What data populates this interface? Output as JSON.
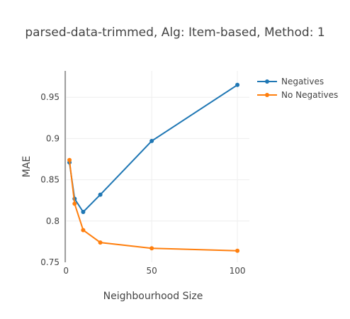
{
  "chart_data": {
    "type": "line",
    "title": "parsed-data-trimmed, Alg: Item-based, Method: 1",
    "xlabel": "Neighbourhood Size",
    "ylabel": "MAE",
    "xlim": [
      -0.5,
      107
    ],
    "ylim": [
      0.75,
      0.982
    ],
    "xticks": [
      0,
      50,
      100
    ],
    "xtick_labels": [
      "0",
      "50",
      "100"
    ],
    "yticks": [
      0.75,
      0.8,
      0.85,
      0.9,
      0.95
    ],
    "ytick_labels": [
      "0.75",
      "0.8",
      "0.85",
      "0.9",
      "0.95"
    ],
    "grid": true,
    "legend_position": "top-right",
    "series": [
      {
        "name": "Negatives",
        "color": "#1f77b4",
        "x": [
          2,
          5,
          10,
          20,
          50,
          100
        ],
        "y": [
          0.871,
          0.827,
          0.811,
          0.832,
          0.897,
          0.965
        ]
      },
      {
        "name": "No Negatives",
        "color": "#ff7f0e",
        "x": [
          2,
          5,
          10,
          20,
          50,
          100
        ],
        "y": [
          0.874,
          0.821,
          0.789,
          0.774,
          0.767,
          0.764
        ]
      }
    ]
  }
}
